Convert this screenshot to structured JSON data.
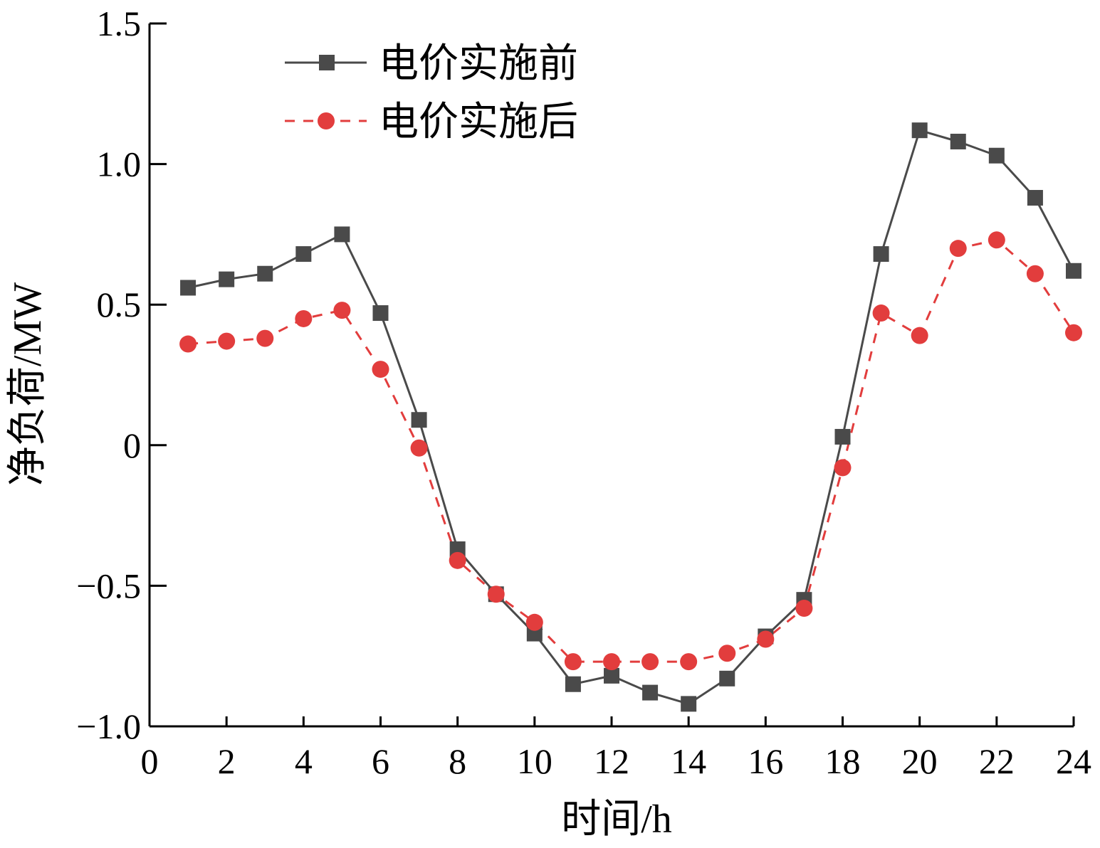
{
  "chart_data": {
    "type": "line",
    "title": "",
    "xlabel": "时间/h",
    "ylabel": "净负荷/MW",
    "xlim": [
      0,
      24
    ],
    "ylim": [
      -1.0,
      1.5
    ],
    "x_ticks": [
      "0",
      "2",
      "4",
      "6",
      "8",
      "10",
      "12",
      "14",
      "16",
      "18",
      "20",
      "22",
      "24"
    ],
    "y_ticks": [
      "1.5",
      "1.0",
      "0.5",
      "0",
      "−0.5",
      "−1.0"
    ],
    "grid": false,
    "legend_position": "top-left",
    "x": [
      1,
      2,
      3,
      4,
      5,
      6,
      7,
      8,
      9,
      10,
      11,
      12,
      13,
      14,
      15,
      16,
      17,
      18,
      19,
      20,
      21,
      22,
      23,
      24
    ],
    "series": [
      {
        "name": "电价实施前",
        "color": "#4a4a4a",
        "line_style": "solid",
        "marker": "square",
        "values": [
          0.56,
          0.59,
          0.61,
          0.68,
          0.75,
          0.47,
          0.09,
          -0.37,
          -0.53,
          -0.67,
          -0.85,
          -0.82,
          -0.88,
          -0.92,
          -0.83,
          -0.68,
          -0.55,
          0.03,
          0.68,
          1.12,
          1.08,
          1.03,
          0.88,
          0.62
        ]
      },
      {
        "name": "电价实施后",
        "color": "#e23d3d",
        "line_style": "dashed",
        "marker": "circle",
        "values": [
          0.36,
          0.37,
          0.38,
          0.45,
          0.48,
          0.27,
          -0.01,
          -0.41,
          -0.53,
          -0.63,
          -0.77,
          -0.77,
          -0.77,
          -0.77,
          -0.74,
          -0.69,
          -0.58,
          -0.08,
          0.47,
          0.39,
          0.7,
          0.73,
          0.61,
          0.4
        ]
      }
    ]
  }
}
